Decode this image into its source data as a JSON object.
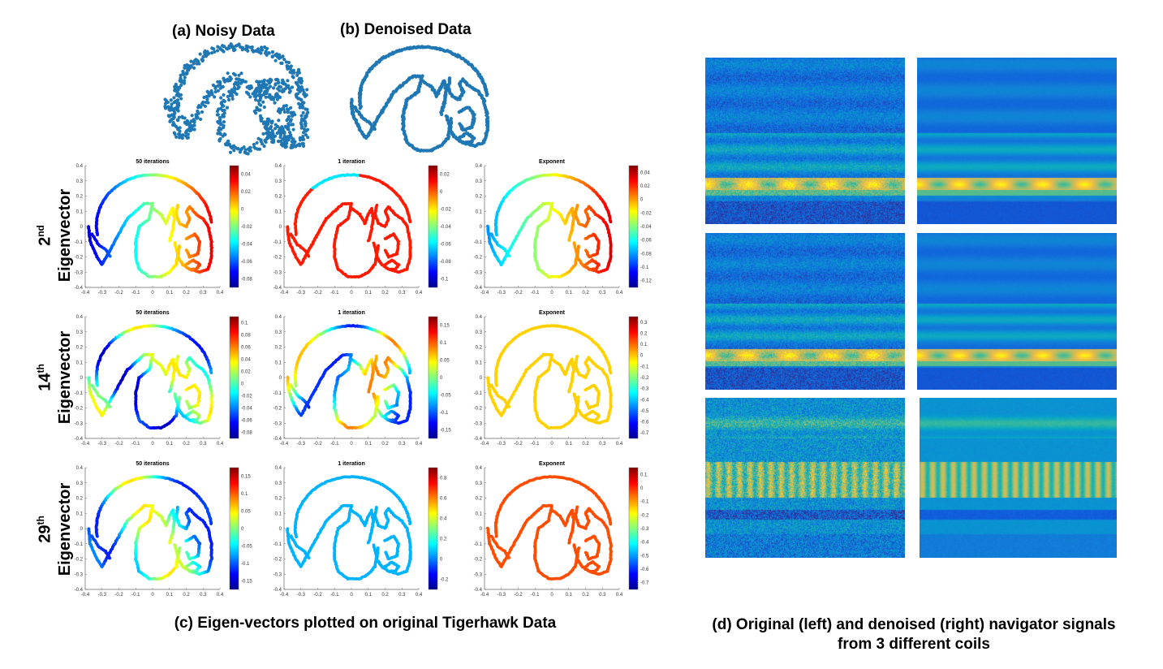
{
  "panel_titles": {
    "noisy": "(a) Noisy Data",
    "denoised": "(b) Denoised Data"
  },
  "row_labels": [
    {
      "ordinal": "2",
      "suffix": "nd",
      "word": "Eigenvector"
    },
    {
      "ordinal": "14",
      "suffix": "th",
      "word": "Eigenvector"
    },
    {
      "ordinal": "29",
      "suffix": "th",
      "word": "Eigenvector"
    }
  ],
  "captions": {
    "c": "(c) Eigen-vectors plotted on original Tigerhawk Data",
    "d_line1": "(d) Original (left) and denoised (right) navigator signals",
    "d_line2": "from 3 different coils"
  },
  "chart_data": [
    {
      "type": "scatter",
      "name": "eigenvector-grid",
      "xlim": [
        -0.4,
        0.4
      ],
      "ylim": [
        -0.4,
        0.4
      ],
      "xticks": [
        "-0.4",
        "-0.3",
        "-0.2",
        "-0.1",
        "0",
        "0.1",
        "0.2",
        "0.3",
        "0.4"
      ],
      "yticks": [
        "0.4",
        "0.3",
        "0.2",
        "0.1",
        "0",
        "-0.1",
        "-0.2",
        "-0.3",
        "-0.4"
      ],
      "columns": [
        "50 iterations",
        "1 iteration",
        "Exponent"
      ],
      "colormap": "jet",
      "colorbars": [
        [
          [
            "0.04",
            "0.02",
            "0",
            "-0.02",
            "-0.04",
            "-0.06",
            "-0.08"
          ],
          [
            "0.02",
            "0",
            "-0.02",
            "-0.04",
            "-0.06",
            "-0.08",
            "-0.1"
          ],
          [
            "0.04",
            "0.02",
            "0",
            "-0.02",
            "-0.04",
            "-0.06",
            "-0.08",
            "-0.1",
            "-0.12"
          ]
        ],
        [
          [
            "0.1",
            "0.08",
            "0.06",
            "0.04",
            "0.02",
            "0",
            "-0.02",
            "-0.04",
            "-0.06",
            "-0.08"
          ],
          [
            "0.15",
            "0.1",
            "0.05",
            "0",
            "-0.05",
            "-0.1",
            "-0.15"
          ],
          [
            "0.3",
            "0.2",
            "0.1",
            "0",
            "-0.1",
            "-0.2",
            "-0.3",
            "-0.4",
            "-0.5",
            "-0.6",
            "-0.7"
          ]
        ],
        [
          [
            "0.15",
            "0.1",
            "0.05",
            "0",
            "-0.05",
            "-0.1",
            "-0.15"
          ],
          [
            "0.8",
            "0.6",
            "0.4",
            "0.2",
            "0",
            "-0.2"
          ],
          [
            "0.1",
            "0",
            "-0.1",
            "-0.2",
            "-0.3",
            "-0.4",
            "-0.5",
            "-0.6",
            "-0.7"
          ]
        ]
      ]
    },
    {
      "type": "heatmap",
      "name": "navigator-signals",
      "rows": 3,
      "columns": [
        "original",
        "denoised"
      ],
      "colormap": "parula"
    }
  ],
  "colors": {
    "scatter_blue": "#1f77b4",
    "jet": [
      "#00008f",
      "#0000ff",
      "#0080ff",
      "#00ffff",
      "#80ff80",
      "#ffff00",
      "#ff8000",
      "#ff0000",
      "#800000"
    ],
    "parula_bg": "#2b3fb0",
    "parula_bright": "#f2d93a"
  }
}
